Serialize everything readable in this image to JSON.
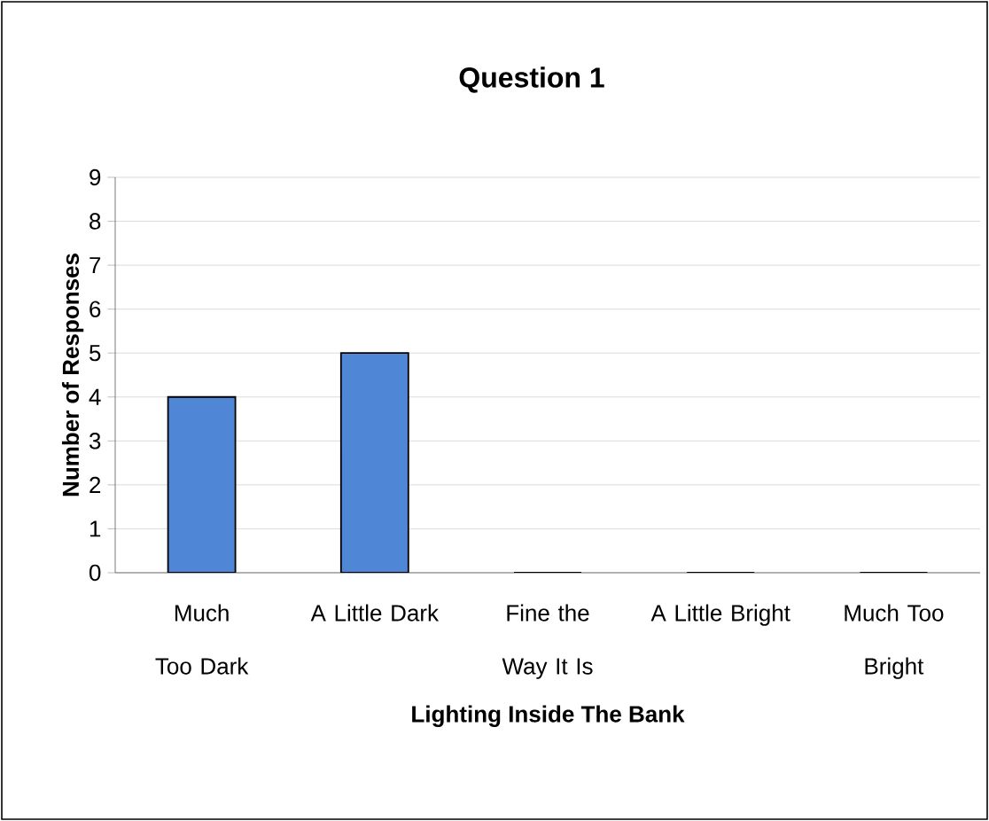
{
  "chart_data": {
    "type": "bar",
    "title": "Question 1",
    "xlabel": "Lighting Inside The Bank",
    "ylabel": "Number of Responses",
    "categories": [
      "Much Too Dark",
      "A Little Dark",
      "Fine the Way It Is",
      "A Little Bright",
      "Much Too Bright"
    ],
    "values": [
      4,
      5,
      0,
      0,
      0
    ],
    "color": "#4f86d6",
    "ylim": [
      0,
      9
    ],
    "yticks": [
      0,
      1,
      2,
      3,
      4,
      5,
      6,
      7,
      8,
      9
    ],
    "grid": "y"
  }
}
